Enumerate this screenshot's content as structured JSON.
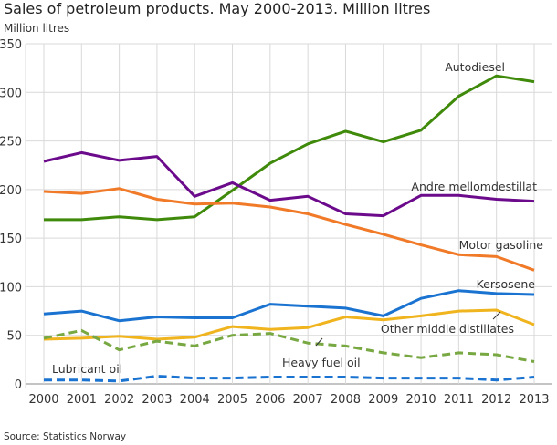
{
  "chart_data": {
    "type": "line",
    "title": "Sales of petroleum products. May 2000-2013. Million litres",
    "ylabel": "Million litres",
    "xlabel": "",
    "source": "Source: Statistics Norway",
    "x": [
      2000,
      2001,
      2002,
      2003,
      2004,
      2005,
      2006,
      2007,
      2008,
      2009,
      2010,
      2011,
      2012,
      2013
    ],
    "ylim": [
      0,
      350
    ],
    "yticks": [
      0,
      50,
      100,
      150,
      200,
      250,
      300,
      350
    ],
    "grid": true,
    "series": [
      {
        "name": "Autodiesel",
        "color": "#3f8a0a",
        "dashed": false,
        "values": [
          169,
          169,
          172,
          169,
          172,
          199,
          227,
          247,
          260,
          249,
          261,
          296,
          317,
          311
        ]
      },
      {
        "name": "Andre mellomdestillat",
        "color": "#6c0a8c",
        "dashed": false,
        "values": [
          229,
          238,
          230,
          234,
          193,
          207,
          189,
          193,
          175,
          173,
          194,
          194,
          190,
          188
        ]
      },
      {
        "name": "Motor gasoline",
        "color": "#f07a28",
        "dashed": false,
        "values": [
          198,
          196,
          201,
          190,
          185,
          186,
          182,
          175,
          164,
          154,
          143,
          133,
          131,
          117
        ]
      },
      {
        "name": "Kersosene",
        "color": "#1a73d0",
        "dashed": false,
        "values": [
          72,
          75,
          65,
          69,
          68,
          68,
          82,
          80,
          78,
          70,
          88,
          96,
          93,
          92
        ]
      },
      {
        "name": "Other middle distillates",
        "color": "#f0b41e",
        "dashed": false,
        "values": [
          46,
          47,
          49,
          46,
          48,
          59,
          56,
          58,
          69,
          66,
          70,
          75,
          76,
          61
        ]
      },
      {
        "name": "Heavy fuel oil",
        "color": "#78a842",
        "dashed": true,
        "values": [
          47,
          55,
          35,
          44,
          39,
          50,
          52,
          42,
          39,
          32,
          27,
          32,
          30,
          23
        ]
      },
      {
        "name": "Lubricant oil",
        "color": "#1a73d0",
        "dashed": true,
        "values": [
          4,
          4,
          3,
          8,
          6,
          6,
          7,
          7,
          7,
          6,
          6,
          6,
          4,
          7
        ]
      }
    ]
  }
}
